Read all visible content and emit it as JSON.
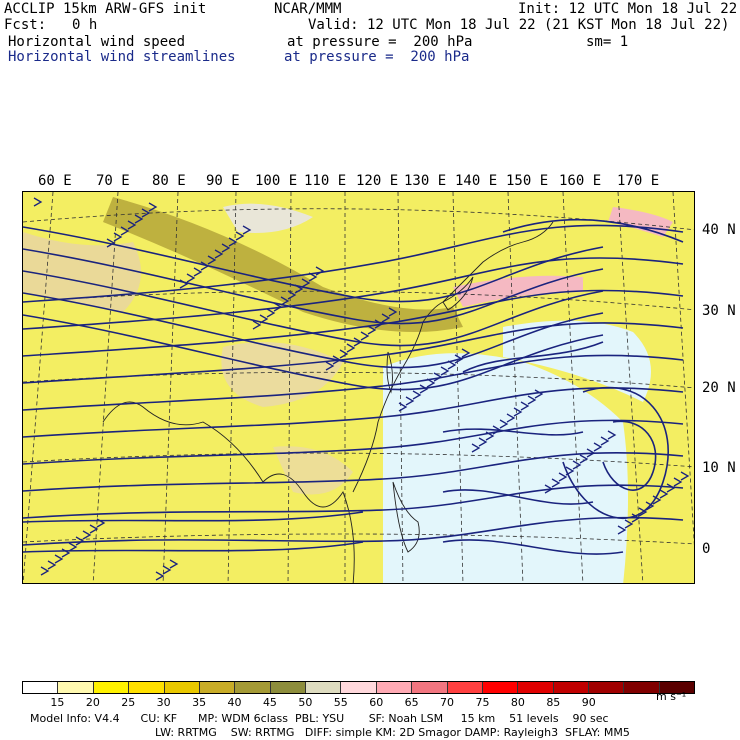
{
  "header": {
    "model": "ACCLIP 15km ARW-GFS init",
    "center": "NCAR/MMM",
    "init": "Init: 12 UTC Mon 18 Jul 22",
    "fcst_label": "Fcst:",
    "fcst_value": "0 h",
    "valid": "Valid: 12 UTC Mon 18 Jul 22 (21 KST Mon 18 Jul 22)",
    "field1_name": "Horizontal wind speed",
    "field1_level": "at pressure =  200 hPa",
    "field1_smooth": "sm= 1",
    "field2_name": "Horizontal wind streamlines",
    "field2_level": "at pressure =  200 hPa"
  },
  "map": {
    "lon_labels": [
      "60 E",
      "70 E",
      "80 E",
      "90 E",
      "100 E",
      "110 E",
      "120 E",
      "130 E",
      "140 E",
      "150 E",
      "160 E",
      "170 E"
    ],
    "lat_labels": [
      "40 N",
      "30 N",
      "20 N",
      "10 N",
      "0"
    ]
  },
  "colorbar": {
    "labels": [
      "15",
      "20",
      "25",
      "30",
      "35",
      "40",
      "45",
      "50",
      "55",
      "60",
      "65",
      "70",
      "75",
      "80",
      "85",
      "90"
    ],
    "unit": "m s⁻¹",
    "colors": [
      "#ffffff",
      "#fff9b0",
      "#fff200",
      "#ffe000",
      "#e9c800",
      "#c8ac28",
      "#a49a36",
      "#8d8d3c",
      "#dedcc0",
      "#ffd8dc",
      "#ffaab4",
      "#f27680",
      "#ff4040",
      "#ff0000",
      "#e00000",
      "#c00000",
      "#a00000",
      "#800000",
      "#5a0000"
    ]
  },
  "footer": {
    "line1": "Model Info: V4.4      CU: KF      MP: WDM 6class  PBL: YSU       SF: Noah LSM     15 km    51 levels    90 sec",
    "line2": "LW: RRTMG    SW: RRTMG   DIFF: simple KM: 2D Smagor DAMP: Rayleigh3  SFLAY: MM5"
  }
}
